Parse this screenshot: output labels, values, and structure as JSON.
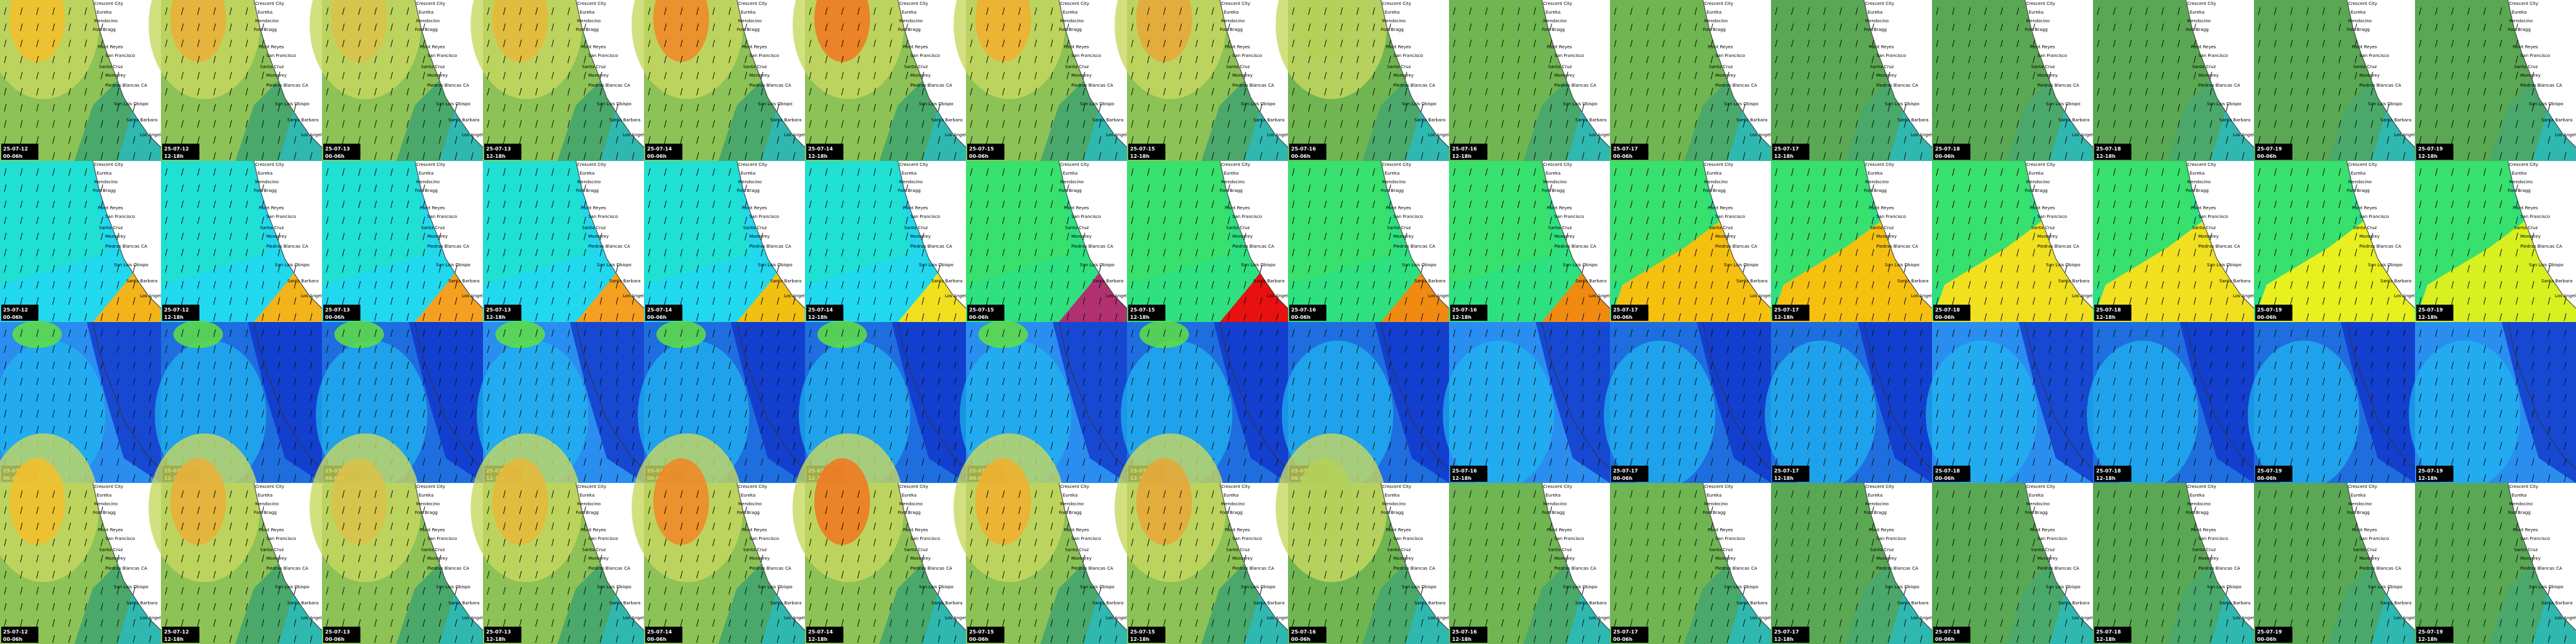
{
  "frames": {
    "dates": [
      "25-07-12",
      "25-07-12",
      "25-07-13",
      "25-07-13",
      "25-07-14",
      "25-07-14",
      "25-07-15",
      "25-07-15",
      "25-07-16",
      "25-07-16",
      "25-07-17",
      "25-07-17",
      "25-07-18",
      "25-07-18",
      "25-07-19",
      "25-07-19"
    ],
    "times": [
      "00-06h",
      "12-18h",
      "00-06h",
      "12-18h",
      "00-06h",
      "12-18h",
      "00-06h",
      "12-18h",
      "00-06h",
      "12-18h",
      "00-06h",
      "12-18h",
      "00-06h",
      "12-18h",
      "00-06h",
      "12-18h"
    ]
  },
  "places": [
    "Crescent City",
    "Eureka",
    "Mendocino",
    "Fort Bragg",
    "Point Reyes",
    "San Francisco",
    "Santa Cruz",
    "Monterey",
    "Piedras Blancas",
    "CA",
    "San Luis Obispo",
    "Santa Barbara",
    "Los Angeles"
  ]
}
